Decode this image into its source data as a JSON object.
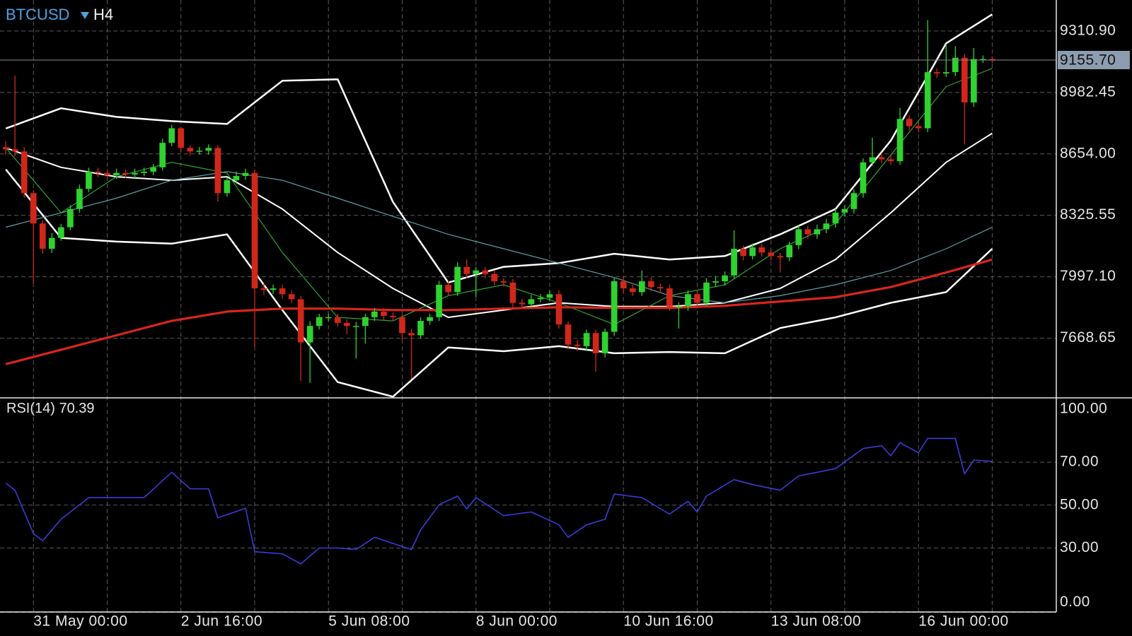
{
  "chart_data": [
    {
      "type": "candlestick",
      "symbol": "BTCUSD",
      "timeframe": "H4",
      "categories": [
        null,
        null,
        null,
        "31 May 00:00",
        null,
        null,
        null,
        null,
        null,
        null,
        null,
        null,
        null,
        null,
        null,
        null,
        null,
        null,
        null,
        "2 Jun 16:00",
        null,
        null,
        null,
        null,
        null,
        null,
        null,
        null,
        null,
        null,
        null,
        null,
        null,
        null,
        null,
        "5 Jun 08:00",
        null,
        null,
        null,
        null,
        null,
        null,
        null,
        null,
        null,
        null,
        null,
        null,
        null,
        null,
        null,
        "8 Jun 00:00",
        null,
        null,
        null,
        null,
        null,
        null,
        null,
        null,
        null,
        null,
        null,
        null,
        null,
        null,
        null,
        "10 Jun 16:00",
        null,
        null,
        null,
        null,
        null,
        null,
        null,
        null,
        null,
        null,
        null,
        null,
        null,
        null,
        null,
        "13 Jun 08:00",
        null,
        null,
        null,
        null,
        null,
        null,
        null,
        null,
        null,
        null,
        null,
        null,
        null,
        null,
        null,
        "16 Jun 00:00",
        null,
        null,
        null,
        null,
        null,
        null,
        null,
        null
      ],
      "open": [
        8690,
        8679,
        8667,
        8444,
        8282,
        8147,
        8205,
        8262,
        8359,
        8467,
        8559,
        8552,
        8540,
        8552,
        8544,
        8552,
        8559,
        8582,
        8713,
        8791,
        8686,
        8667,
        8671,
        8686,
        8444,
        8513,
        8536,
        8552,
        7935,
        7927,
        7935,
        7904,
        7877,
        7646,
        7734,
        7781,
        7781,
        7750,
        7734,
        7734,
        7781,
        7811,
        7788,
        7781,
        7696,
        7684,
        7761,
        7781,
        7954,
        7915,
        8050,
        8012,
        8031,
        8012,
        7973,
        7966,
        7858,
        7850,
        7877,
        7885,
        7904,
        7742,
        7634,
        7626,
        7696,
        7588,
        7703,
        7973,
        7935,
        7915,
        7973,
        7942,
        7935,
        7838,
        7838,
        7904,
        7858,
        7966,
        7973,
        8004,
        8147,
        8108,
        8154,
        8127,
        8108,
        8101,
        8166,
        8251,
        8224,
        8251,
        8282,
        8340,
        8359,
        8444,
        8609,
        8636,
        8625,
        8615,
        8841,
        8802,
        8791,
        9091,
        9084,
        9091,
        9168,
        8929,
        9161,
        9161
      ],
      "high": [
        8720,
        9072,
        8690,
        8460,
        8300,
        8230,
        8280,
        8380,
        8490,
        8580,
        8580,
        8570,
        8575,
        8570,
        8575,
        8580,
        8600,
        8735,
        8810,
        8800,
        8700,
        8690,
        8705,
        8700,
        8530,
        8560,
        8575,
        8570,
        7960,
        7955,
        7955,
        7925,
        7895,
        7760,
        7800,
        7800,
        7800,
        7770,
        7755,
        7800,
        7830,
        7830,
        7805,
        7800,
        7720,
        7780,
        7800,
        7975,
        7975,
        8075,
        8090,
        8050,
        8050,
        8030,
        7990,
        7985,
        7880,
        7900,
        7905,
        7925,
        7925,
        7760,
        7660,
        7715,
        7715,
        7720,
        7995,
        7995,
        7955,
        8030,
        7995,
        7960,
        7955,
        7860,
        7925,
        7925,
        7990,
        8000,
        8025,
        8245,
        8165,
        8175,
        8175,
        8145,
        8125,
        8185,
        8270,
        8270,
        8275,
        8305,
        8360,
        8380,
        8465,
        8630,
        8740,
        8660,
        8650,
        8900,
        8860,
        8825,
        9369,
        9110,
        9240,
        9230,
        9190,
        9220,
        9180,
        9175
      ],
      "low": [
        8650,
        8640,
        8420,
        7960,
        8120,
        8125,
        8190,
        8245,
        8340,
        8450,
        8530,
        8520,
        8520,
        8525,
        8525,
        8535,
        8540,
        8565,
        8695,
        8665,
        8645,
        8650,
        8650,
        8400,
        8425,
        8495,
        8515,
        7620,
        7900,
        7905,
        7880,
        7855,
        7440,
        7430,
        7715,
        7760,
        7730,
        7690,
        7560,
        7640,
        7760,
        7765,
        7760,
        7660,
        7450,
        7665,
        7740,
        7760,
        7895,
        7895,
        7990,
        7890,
        7990,
        7950,
        7945,
        7835,
        7825,
        7830,
        7860,
        7865,
        7720,
        7610,
        7600,
        7600,
        7490,
        7565,
        7680,
        7910,
        7895,
        7895,
        7920,
        7910,
        7815,
        7720,
        7815,
        7835,
        7840,
        7945,
        7950,
        7985,
        8085,
        8090,
        8105,
        8085,
        8020,
        8080,
        8145,
        8200,
        8200,
        8230,
        8260,
        8320,
        8335,
        8420,
        8590,
        8605,
        8595,
        8595,
        8780,
        8770,
        8770,
        9060,
        9065,
        9070,
        8705,
        8905,
        9140,
        9140
      ],
      "close": [
        8679,
        8667,
        8444,
        8282,
        8147,
        8205,
        8262,
        8359,
        8467,
        8559,
        8552,
        8540,
        8552,
        8544,
        8552,
        8559,
        8582,
        8713,
        8791,
        8686,
        8667,
        8671,
        8686,
        8444,
        8513,
        8536,
        8552,
        7935,
        7927,
        7935,
        7904,
        7877,
        7646,
        7734,
        7781,
        7781,
        7750,
        7734,
        7734,
        7781,
        7811,
        7788,
        7781,
        7696,
        7684,
        7761,
        7781,
        7954,
        7915,
        8050,
        8012,
        8031,
        8012,
        7973,
        7966,
        7858,
        7850,
        7877,
        7885,
        7904,
        7742,
        7634,
        7626,
        7696,
        7588,
        7703,
        7973,
        7935,
        7915,
        7973,
        7942,
        7935,
        7838,
        7838,
        7904,
        7858,
        7966,
        7973,
        8004,
        8147,
        8108,
        8154,
        8127,
        8108,
        8101,
        8166,
        8251,
        8224,
        8251,
        8282,
        8340,
        8359,
        8444,
        8609,
        8636,
        8625,
        8615,
        8841,
        8802,
        8791,
        9091,
        9084,
        9091,
        9168,
        8929,
        9161,
        9161,
        9155.7
      ],
      "up_color": "#2fd22f",
      "down_color": "#d1271b",
      "overlays": [
        {
          "color": "#ffffff",
          "width": 2.5,
          "x": [
            0,
            6,
            12,
            18,
            24,
            30,
            36,
            42,
            48,
            54,
            60,
            66,
            72,
            78,
            84,
            90,
            96,
            102,
            107
          ],
          "values": [
            8790,
            8898,
            8852,
            8829,
            8814,
            9045,
            9053,
            8397,
            7966,
            8050,
            8070,
            8120,
            8089,
            8108,
            8224,
            8359,
            8725,
            9245,
            9400
          ]
        },
        {
          "color": "#ffffff",
          "width": 2,
          "x": [
            0,
            6,
            12,
            18,
            24,
            30,
            36,
            42,
            48,
            54,
            60,
            66,
            72,
            78,
            84,
            90,
            96,
            102,
            107
          ],
          "values": [
            8686,
            8582,
            8532,
            8513,
            8532,
            8359,
            8127,
            7935,
            7780,
            7819,
            7858,
            7838,
            7838,
            7858,
            7935,
            8089,
            8339,
            8609,
            8764
          ]
        },
        {
          "color": "#ffffff",
          "width": 2.5,
          "x": [
            0,
            6,
            12,
            18,
            24,
            30,
            36,
            42,
            48,
            54,
            60,
            66,
            72,
            78,
            84,
            90,
            96,
            102,
            107
          ],
          "values": [
            8571,
            8205,
            8185,
            8174,
            8224,
            7819,
            7434,
            7356,
            7619,
            7599,
            7626,
            7588,
            7595,
            7588,
            7723,
            7780,
            7858,
            7915,
            8147
          ]
        },
        {
          "color": "#2ea62e",
          "width": 1.2,
          "x": [
            0,
            6,
            12,
            18,
            24,
            30,
            36,
            42,
            48,
            54,
            60,
            66,
            72,
            78,
            84,
            90,
            96,
            102,
            107
          ],
          "values": [
            8686,
            8339,
            8532,
            8609,
            8551,
            8127,
            7780,
            7761,
            7896,
            7954,
            7858,
            7742,
            7896,
            7954,
            8147,
            8282,
            8648,
            9014,
            9111
          ]
        },
        {
          "color": "#5f9ea0",
          "width": 1.2,
          "x": [
            0,
            6,
            12,
            18,
            24,
            30,
            36,
            42,
            48,
            54,
            60,
            66,
            72,
            78,
            84,
            90,
            96,
            102,
            107
          ],
          "values": [
            8262,
            8339,
            8417,
            8513,
            8559,
            8513,
            8417,
            8320,
            8224,
            8147,
            8070,
            7993,
            7896,
            7858,
            7896,
            7954,
            8031,
            8147,
            8262
          ]
        },
        {
          "color": "#d8261c",
          "width": 3.2,
          "x": [
            0,
            6,
            12,
            18,
            24,
            30,
            36,
            42,
            48,
            54,
            60,
            66,
            72,
            78,
            84,
            90,
            96,
            102,
            107
          ],
          "values": [
            7530,
            7607,
            7684,
            7761,
            7811,
            7827,
            7827,
            7819,
            7819,
            7827,
            7834,
            7831,
            7831,
            7842,
            7865,
            7888,
            7942,
            8020,
            8089
          ]
        }
      ],
      "current_price": {
        "value": 9155.7,
        "label": "9155.70"
      },
      "ylim": [
        7348.7,
        9476.7
      ],
      "yticks": [
        {
          "value": 9310.9,
          "label": "9310.90"
        },
        {
          "value": 8982.45,
          "label": "8982.45"
        },
        {
          "value": 8654,
          "label": "8654.00"
        },
        {
          "value": 8325.55,
          "label": "8325.55"
        },
        {
          "value": 7997.1,
          "label": "7997.10"
        },
        {
          "value": 7668.65,
          "label": "7668.65"
        }
      ],
      "grid": true
    },
    {
      "type": "line",
      "name": "RSI(14)",
      "color": "#3b3bd6",
      "x": [
        0,
        1,
        3,
        4,
        6,
        9,
        12,
        15,
        18,
        20,
        22,
        23,
        26,
        27,
        30,
        32,
        34,
        36,
        38,
        40,
        44,
        45,
        47,
        49,
        50,
        51,
        54,
        57,
        60,
        61,
        63,
        65,
        66,
        69,
        72,
        74,
        75,
        76,
        79,
        81,
        84,
        86,
        90,
        93,
        95,
        96,
        97,
        99,
        100,
        103,
        104,
        105,
        107
      ],
      "values": [
        60.3,
        56.9,
        36.7,
        33.4,
        43.4,
        53.5,
        53.5,
        53.5,
        65.3,
        57.6,
        57.6,
        44.1,
        48.5,
        28.3,
        27.3,
        22.6,
        30,
        30,
        29.3,
        35,
        29.3,
        38.4,
        50.2,
        54.2,
        48.2,
        53.5,
        45.1,
        46.8,
        40.8,
        35,
        40.8,
        43.4,
        55.2,
        53.5,
        45.8,
        51.8,
        46.8,
        54.2,
        61.9,
        59.6,
        56.9,
        63.6,
        67,
        76.4,
        77.7,
        73,
        79.1,
        74.4,
        81.1,
        81.1,
        64.6,
        71,
        70.39
      ],
      "ylim": [
        0,
        100
      ],
      "yticks": [
        {
          "value": 100,
          "label": "100.00"
        },
        {
          "value": 70,
          "label": "70.00"
        },
        {
          "value": 50,
          "label": "50.00"
        },
        {
          "value": 30,
          "label": "30.00"
        },
        {
          "value": 0,
          "label": "0.00"
        }
      ],
      "grid": true
    }
  ]
}
